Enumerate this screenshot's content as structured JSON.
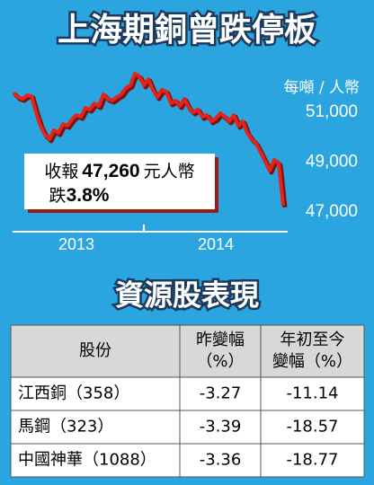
{
  "chart_data": {
    "type": "line",
    "title": "上海期銅曾跌停板",
    "unit_label": "每噸 / 人幣",
    "categories": [
      null,
      null,
      null,
      null,
      null,
      null,
      null,
      null,
      null,
      null,
      null,
      null,
      null,
      null,
      "2013",
      null,
      null,
      null,
      null,
      null,
      null,
      null,
      null,
      null,
      null,
      null,
      null,
      null,
      null,
      null,
      null,
      null,
      null,
      null,
      null,
      null,
      null,
      null,
      null,
      null,
      null,
      null,
      null,
      null,
      null,
      "2014",
      null,
      null,
      null,
      null,
      null,
      null,
      null,
      null,
      null,
      null,
      null,
      null,
      null,
      null,
      null
    ],
    "values": [
      51790,
      51610,
      51540,
      51680,
      51650,
      51000,
      50460,
      50100,
      49920,
      50280,
      50170,
      50530,
      50460,
      50710,
      50890,
      50820,
      51180,
      51110,
      51360,
      51250,
      51720,
      51540,
      51470,
      51610,
      51720,
      51970,
      52080,
      52550,
      52440,
      52080,
      52330,
      51900,
      51610,
      51900,
      51830,
      51360,
      51470,
      51250,
      51540,
      51180,
      51000,
      51110,
      50820,
      50890,
      50640,
      50750,
      50960,
      50820,
      50640,
      50890,
      50460,
      50640,
      50170,
      49920,
      49740,
      49380,
      49020,
      48660,
      49090,
      48950,
      47260
    ],
    "color": "#e3231c",
    "ylim": [
      46500,
      52900
    ],
    "yticks": [
      {
        "value": 51000,
        "label": "51,000"
      },
      {
        "value": 49000,
        "label": "49,000"
      },
      {
        "value": 47000,
        "label": "47,000"
      }
    ],
    "annotation": {
      "line1": [
        "收報",
        "47,260",
        "元人幣"
      ],
      "line2": [
        "跌",
        "3.8%"
      ]
    }
  },
  "table_title": "資源股表現",
  "table": {
    "header": [
      [
        "股份"
      ],
      [
        "昨變幅",
        "（%）"
      ],
      [
        "年初至今",
        "變幅（%）"
      ]
    ],
    "rows": [
      [
        "江西銅（358）",
        -3.27,
        -11.14
      ],
      [
        "馬鋼（323）",
        -3.39,
        -18.57
      ],
      [
        "中國神華（1088）",
        -3.36,
        -18.77
      ]
    ]
  }
}
